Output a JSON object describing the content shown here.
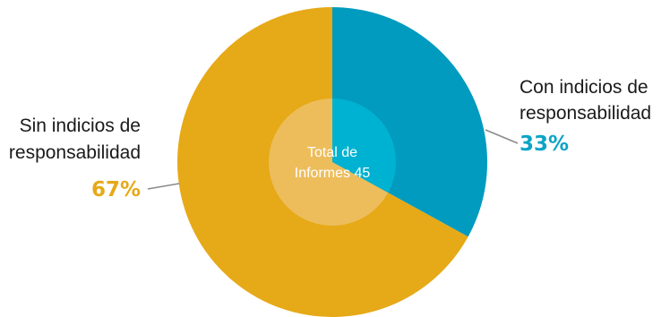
{
  "chart_data": {
    "type": "pie",
    "slices": [
      {
        "label_line1": "Con indicios de",
        "label_line2": "responsabilidad",
        "percent_text": "33%",
        "value": 33,
        "color": "#009bbf",
        "inner_color": "#00b2d1",
        "pct_color": "#0ba4c6"
      },
      {
        "label_line1": "Sin indicios de",
        "label_line2": "responsabilidad",
        "percent_text": "67%",
        "value": 67,
        "color": "#e6a917",
        "inner_color": "#edbd5c",
        "pct_color": "#e6a917"
      }
    ],
    "center_label": {
      "line1": "Total de",
      "line2": "Informes 45"
    },
    "leader_line_color": "#8a8a8a"
  }
}
